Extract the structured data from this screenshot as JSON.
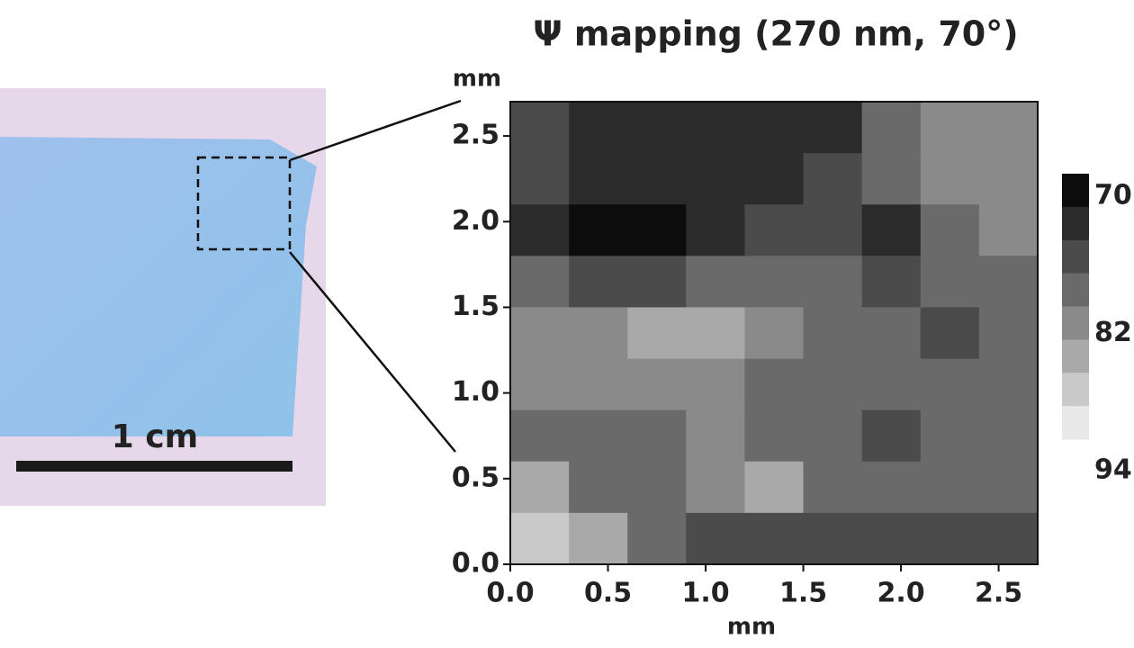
{
  "photo": {
    "scale_label": "1 cm"
  },
  "chart_data": {
    "type": "contour",
    "title": "Ψ mapping (270 nm, 70°)",
    "x_label": "mm",
    "y_label": "mm",
    "xlim": [
      0,
      2.7
    ],
    "ylim": [
      0,
      2.7
    ],
    "xticks": [
      {
        "value": 0,
        "label": "0.0"
      },
      0.5,
      {
        "value": 1,
        "label": "1.0"
      },
      1.5,
      {
        "value": 2,
        "label": "2.0"
      },
      2.5
    ],
    "yticks": [
      {
        "value": 0,
        "label": "0.0"
      },
      0.5,
      {
        "value": 1,
        "label": "1.0"
      },
      1.5,
      {
        "value": 2,
        "label": "2.0"
      },
      2.5
    ],
    "x": [
      0.15,
      0.45,
      0.75,
      1.05,
      1.35,
      1.65,
      1.95,
      2.25,
      2.55
    ],
    "y": [
      2.55,
      2.25,
      1.95,
      1.65,
      1.35,
      1.05,
      0.75,
      0.45,
      0.15
    ],
    "z": [
      [
        76,
        73,
        73,
        73,
        73,
        73,
        79,
        84,
        84
      ],
      [
        76,
        73,
        73,
        74,
        74,
        76,
        79,
        84,
        84
      ],
      [
        74,
        71,
        71,
        74,
        76,
        77,
        74,
        79,
        82
      ],
      [
        80,
        76,
        77,
        80,
        80,
        79,
        76,
        79,
        79
      ],
      [
        83,
        83,
        86,
        86,
        83,
        80,
        80,
        77,
        80
      ],
      [
        83,
        83,
        83,
        83,
        80,
        80,
        80,
        80,
        80
      ],
      [
        80,
        80,
        80,
        83,
        80,
        79,
        76,
        79,
        80
      ],
      [
        86,
        80,
        80,
        83,
        86,
        80,
        79,
        79,
        79
      ],
      [
        89,
        86,
        80,
        77,
        77,
        77,
        77,
        77,
        77
      ]
    ],
    "colorbar": {
      "lim": [
        70,
        94
      ],
      "levels": [
        70,
        73,
        76,
        79,
        82,
        85,
        88,
        91
      ],
      "ticks": [
        70,
        82,
        94
      ]
    }
  }
}
